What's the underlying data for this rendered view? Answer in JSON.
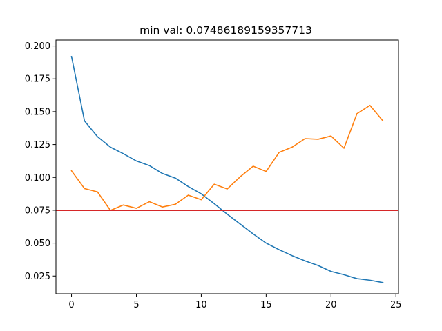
{
  "chart_data": {
    "type": "line",
    "title": "min val: 0.07486189159357713",
    "xlabel": "",
    "ylabel": "",
    "xlim": [
      -1.2,
      25.2
    ],
    "ylim": [
      0.0115,
      0.2045
    ],
    "grid": false,
    "legend": "none",
    "xticks": [
      0,
      5,
      10,
      15,
      20,
      25
    ],
    "xtick_labels": [
      "0",
      "5",
      "10",
      "15",
      "20",
      "25"
    ],
    "yticks": [
      0.025,
      0.05,
      0.075,
      0.1,
      0.125,
      0.15,
      0.175,
      0.2
    ],
    "ytick_labels": [
      "0.025",
      "0.050",
      "0.075",
      "0.100",
      "0.125",
      "0.150",
      "0.175",
      "0.200"
    ],
    "x": [
      0,
      1,
      2,
      3,
      4,
      5,
      6,
      7,
      8,
      9,
      10,
      11,
      12,
      13,
      14,
      15,
      16,
      17,
      18,
      19,
      20,
      21,
      22,
      23,
      24
    ],
    "series": [
      {
        "color": "#1f77b4",
        "values": [
          0.192,
          0.143,
          0.131,
          0.123,
          0.118,
          0.1125,
          0.109,
          0.103,
          0.0995,
          0.093,
          0.0875,
          0.08,
          0.072,
          0.0645,
          0.057,
          0.05,
          0.045,
          0.0405,
          0.0365,
          0.033,
          0.0285,
          0.026,
          0.023,
          0.0218,
          0.02
        ]
      },
      {
        "color": "#ff7f0e",
        "values": [
          0.105,
          0.0915,
          0.089,
          0.0749,
          0.079,
          0.0765,
          0.0815,
          0.0775,
          0.0795,
          0.0865,
          0.083,
          0.0948,
          0.0912,
          0.1005,
          0.1085,
          0.1045,
          0.119,
          0.123,
          0.1295,
          0.129,
          0.1315,
          0.1222,
          0.1485,
          0.1548,
          0.143
        ]
      }
    ],
    "hline": {
      "y": 0.07486189159357713,
      "color": "#d62728"
    }
  }
}
